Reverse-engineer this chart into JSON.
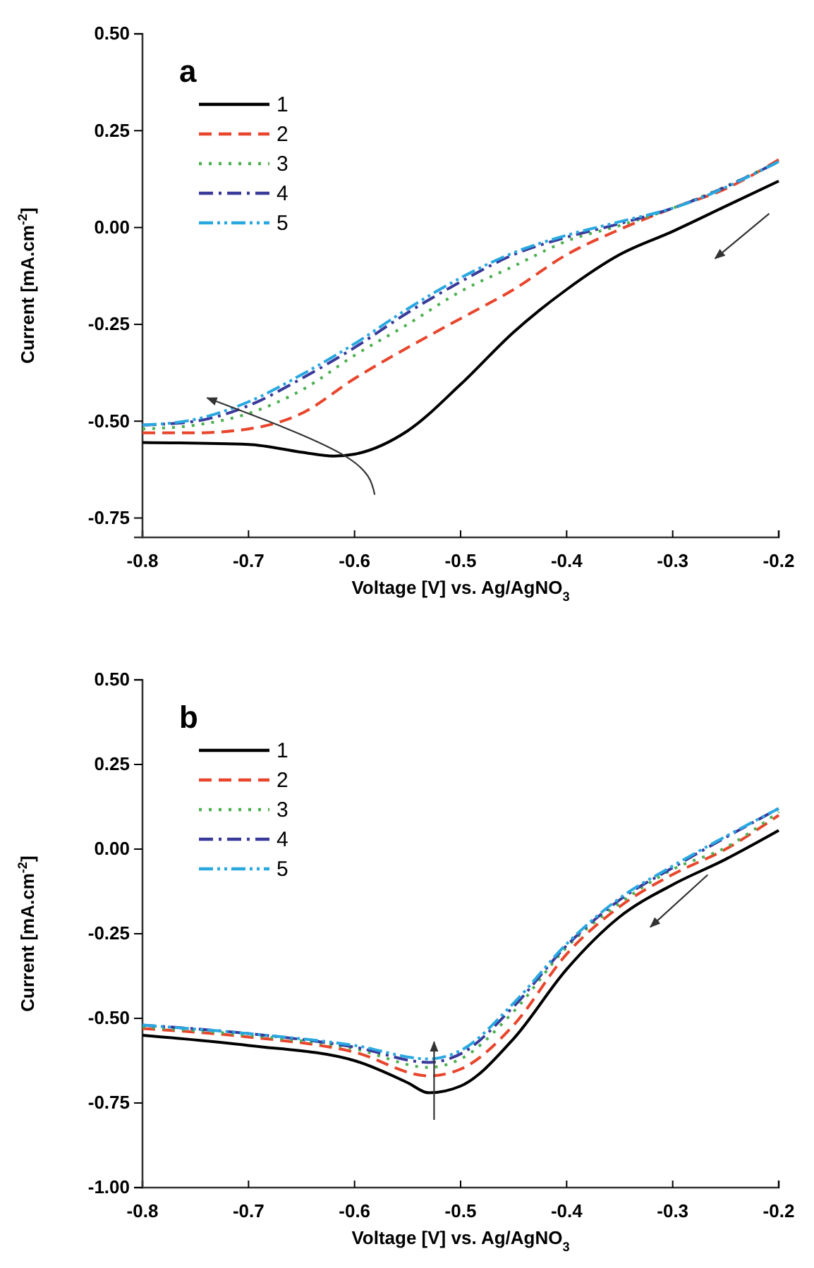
{
  "chart_data": [
    {
      "type": "line",
      "title": "a",
      "xlabel": "Voltage [V] vs. Ag/AgNO$_{3}$",
      "ylabel": "Current [mA.cm$^{-2}$]",
      "xlim": [
        -0.8,
        -0.2
      ],
      "xticks": [
        -0.8,
        -0.7,
        -0.6,
        -0.5,
        -0.4,
        -0.3,
        -0.2
      ],
      "ylim": [
        -0.8,
        0.5
      ],
      "yticks": [
        {
          "value": -0.75,
          "label": "-0.75"
        },
        {
          "value": -0.5,
          "label": "-0.50"
        },
        {
          "value": -0.25,
          "label": "-0.25"
        },
        {
          "value": 0,
          "label": "0.00"
        },
        {
          "value": 0.25,
          "label": "0.25"
        },
        {
          "value": 0.5,
          "label": "0.50"
        }
      ],
      "legend": "top left",
      "marker": "none",
      "series": [
        {
          "name": "1",
          "color": "#000000",
          "line_style": "solid",
          "x": [
            -0.8,
            -0.7,
            -0.65,
            -0.62,
            -0.6,
            -0.55,
            -0.5,
            -0.45,
            -0.4,
            -0.35,
            -0.3,
            -0.25,
            -0.2
          ],
          "values": [
            -0.555,
            -0.56,
            -0.58,
            -0.59,
            -0.585,
            -0.525,
            -0.405,
            -0.27,
            -0.16,
            -0.07,
            -0.01,
            0.055,
            0.12
          ]
        },
        {
          "name": "2",
          "color": "#e8452c",
          "line_style": "dashed",
          "x": [
            -0.8,
            -0.75,
            -0.7,
            -0.65,
            -0.6,
            -0.55,
            -0.5,
            -0.45,
            -0.4,
            -0.35,
            -0.3,
            -0.25,
            -0.2
          ],
          "values": [
            -0.53,
            -0.53,
            -0.52,
            -0.48,
            -0.39,
            -0.31,
            -0.235,
            -0.16,
            -0.07,
            -0.005,
            0.05,
            0.1,
            0.175
          ]
        },
        {
          "name": "3",
          "color": "#4caf50",
          "line_style": "dotted",
          "x": [
            -0.8,
            -0.75,
            -0.7,
            -0.65,
            -0.6,
            -0.55,
            -0.5,
            -0.45,
            -0.4,
            -0.35,
            -0.3,
            -0.2
          ],
          "values": [
            -0.52,
            -0.51,
            -0.48,
            -0.42,
            -0.33,
            -0.25,
            -0.165,
            -0.1,
            -0.035,
            0.005,
            0.05,
            0.17
          ]
        },
        {
          "name": "4",
          "color": "#3a3a9a",
          "line_style": "dashdot",
          "x": [
            -0.8,
            -0.75,
            -0.7,
            -0.65,
            -0.6,
            -0.55,
            -0.5,
            -0.45,
            -0.4,
            -0.35,
            -0.3,
            -0.2
          ],
          "values": [
            -0.51,
            -0.5,
            -0.46,
            -0.39,
            -0.31,
            -0.22,
            -0.14,
            -0.07,
            -0.025,
            0.01,
            0.05,
            0.17
          ]
        },
        {
          "name": "5",
          "color": "#29a8e0",
          "line_style": "dashdotdot",
          "x": [
            -0.8,
            -0.75,
            -0.7,
            -0.65,
            -0.6,
            -0.55,
            -0.5,
            -0.45,
            -0.4,
            -0.35,
            -0.3,
            -0.2
          ],
          "values": [
            -0.51,
            -0.495,
            -0.45,
            -0.38,
            -0.3,
            -0.21,
            -0.13,
            -0.065,
            -0.02,
            0.015,
            0.05,
            0.17
          ]
        }
      ]
    },
    {
      "type": "line",
      "title": "b",
      "xlabel": "Voltage [V] vs. Ag/AgNO$_{3}$",
      "ylabel": "Current [mA.cm$^{-2}$]",
      "xlim": [
        -0.8,
        -0.2
      ],
      "xticks": [
        -0.8,
        -0.7,
        -0.6,
        -0.5,
        -0.4,
        -0.3,
        -0.2
      ],
      "ylim": [
        -1.0,
        0.5
      ],
      "yticks": [
        {
          "value": -1.0,
          "label": "-1.00"
        },
        {
          "value": -0.75,
          "label": "-0.75"
        },
        {
          "value": -0.5,
          "label": "-0.50"
        },
        {
          "value": -0.25,
          "label": "-0.25"
        },
        {
          "value": 0,
          "label": "0.00"
        },
        {
          "value": 0.25,
          "label": "0.25"
        },
        {
          "value": 0.5,
          "label": "0.50"
        }
      ],
      "legend": "top left",
      "marker": "none",
      "series": [
        {
          "name": "1",
          "color": "#000000",
          "line_style": "solid",
          "x": [
            -0.8,
            -0.7,
            -0.6,
            -0.55,
            -0.53,
            -0.5,
            -0.45,
            -0.4,
            -0.35,
            -0.3,
            -0.25,
            -0.2
          ],
          "values": [
            -0.55,
            -0.58,
            -0.625,
            -0.69,
            -0.72,
            -0.7,
            -0.56,
            -0.355,
            -0.2,
            -0.105,
            -0.03,
            0.055
          ]
        },
        {
          "name": "2",
          "color": "#e8452c",
          "line_style": "dashed",
          "x": [
            -0.8,
            -0.7,
            -0.6,
            -0.53,
            -0.5,
            -0.45,
            -0.4,
            -0.35,
            -0.3,
            -0.25,
            -0.2
          ],
          "values": [
            -0.53,
            -0.555,
            -0.6,
            -0.67,
            -0.65,
            -0.52,
            -0.31,
            -0.17,
            -0.075,
            0.0,
            0.1
          ]
        },
        {
          "name": "3",
          "color": "#4caf50",
          "line_style": "dotted",
          "x": [
            -0.8,
            -0.7,
            -0.6,
            -0.53,
            -0.5,
            -0.45,
            -0.4,
            -0.35,
            -0.3,
            -0.25,
            -0.2
          ],
          "values": [
            -0.525,
            -0.55,
            -0.59,
            -0.645,
            -0.62,
            -0.48,
            -0.29,
            -0.16,
            -0.06,
            0.005,
            0.11
          ]
        },
        {
          "name": "4",
          "color": "#3a3a9a",
          "line_style": "dashdot",
          "x": [
            -0.8,
            -0.7,
            -0.6,
            -0.53,
            -0.5,
            -0.45,
            -0.4,
            -0.35,
            -0.3,
            -0.2
          ],
          "values": [
            -0.52,
            -0.545,
            -0.585,
            -0.63,
            -0.605,
            -0.465,
            -0.285,
            -0.15,
            -0.055,
            0.12
          ]
        },
        {
          "name": "5",
          "color": "#29a8e0",
          "line_style": "dashdotdot",
          "x": [
            -0.8,
            -0.7,
            -0.6,
            -0.53,
            -0.5,
            -0.45,
            -0.4,
            -0.35,
            -0.3,
            -0.2
          ],
          "values": [
            -0.52,
            -0.545,
            -0.58,
            -0.62,
            -0.595,
            -0.455,
            -0.28,
            -0.145,
            -0.05,
            0.12
          ]
        }
      ]
    }
  ]
}
